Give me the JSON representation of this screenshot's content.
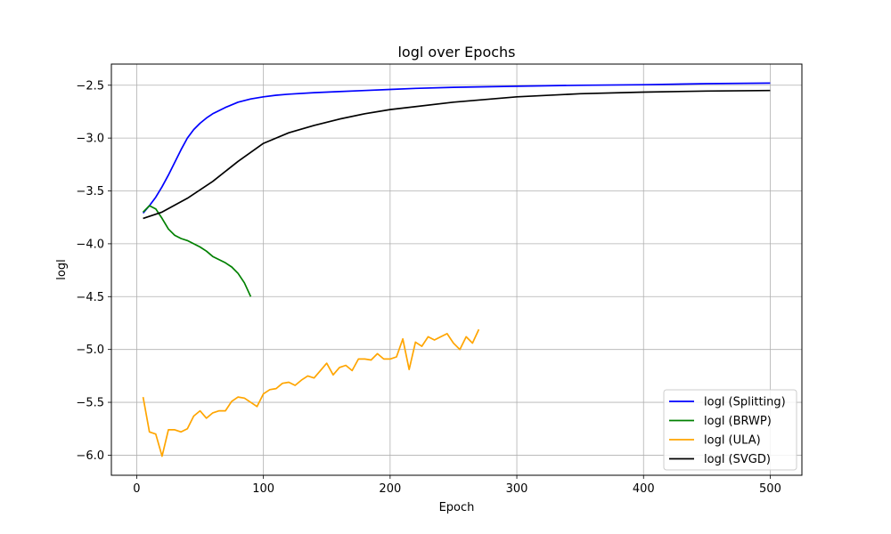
{
  "chart_data": {
    "type": "line",
    "title": "logl over Epochs",
    "xlabel": "Epoch",
    "ylabel": "logl",
    "xlim": [
      -20,
      525
    ],
    "ylim": [
      -6.19,
      -2.3
    ],
    "xticks": [
      0,
      100,
      200,
      300,
      400,
      500
    ],
    "xtick_labels": [
      "0",
      "100",
      "200",
      "300",
      "400",
      "500"
    ],
    "yticks": [
      -2.5,
      -3.0,
      -3.5,
      -4.0,
      -4.5,
      -5.0,
      -5.5,
      -6.0
    ],
    "ytick_labels": [
      "−2.5",
      "−3.0",
      "−3.5",
      "−4.0",
      "−4.5",
      "−5.0",
      "−5.5",
      "−6.0"
    ],
    "grid": true,
    "legend_position": "lower-right",
    "series": [
      {
        "name": "logl (Splitting)",
        "color": "#0000ff",
        "x": [
          5,
          10,
          15,
          20,
          25,
          30,
          35,
          40,
          45,
          50,
          55,
          60,
          70,
          80,
          90,
          100,
          110,
          120,
          140,
          160,
          180,
          200,
          220,
          250,
          300,
          350,
          400,
          450,
          500
        ],
        "y": [
          -3.71,
          -3.64,
          -3.56,
          -3.46,
          -3.35,
          -3.23,
          -3.11,
          -3.0,
          -2.92,
          -2.86,
          -2.81,
          -2.77,
          -2.71,
          -2.66,
          -2.63,
          -2.61,
          -2.595,
          -2.585,
          -2.57,
          -2.56,
          -2.55,
          -2.54,
          -2.53,
          -2.52,
          -2.51,
          -2.5,
          -2.495,
          -2.485,
          -2.48
        ]
      },
      {
        "name": "logl (BRWP)",
        "color": "#008000",
        "x": [
          5,
          10,
          15,
          20,
          25,
          30,
          35,
          40,
          45,
          50,
          55,
          60,
          65,
          70,
          75,
          80,
          85,
          90
        ],
        "y": [
          -3.7,
          -3.64,
          -3.67,
          -3.76,
          -3.86,
          -3.92,
          -3.95,
          -3.97,
          -4.0,
          -4.03,
          -4.07,
          -4.12,
          -4.15,
          -4.18,
          -4.22,
          -4.28,
          -4.37,
          -4.5
        ]
      },
      {
        "name": "logl (ULA)",
        "color": "#ffa500",
        "x": [
          5,
          10,
          15,
          20,
          25,
          30,
          35,
          40,
          45,
          50,
          55,
          60,
          65,
          70,
          75,
          80,
          85,
          90,
          95,
          100,
          105,
          110,
          115,
          120,
          125,
          130,
          135,
          140,
          145,
          150,
          155,
          160,
          165,
          170,
          175,
          180,
          185,
          190,
          195,
          200,
          205,
          210,
          215,
          220,
          225,
          230,
          235,
          240,
          245,
          250,
          255,
          260,
          265,
          270
        ],
        "y": [
          -5.45,
          -5.78,
          -5.8,
          -6.01,
          -5.76,
          -5.76,
          -5.78,
          -5.75,
          -5.63,
          -5.58,
          -5.65,
          -5.6,
          -5.58,
          -5.58,
          -5.49,
          -5.45,
          -5.46,
          -5.5,
          -5.54,
          -5.42,
          -5.38,
          -5.37,
          -5.32,
          -5.31,
          -5.34,
          -5.29,
          -5.25,
          -5.27,
          -5.2,
          -5.13,
          -5.24,
          -5.17,
          -5.15,
          -5.2,
          -5.09,
          -5.09,
          -5.1,
          -5.04,
          -5.09,
          -5.09,
          -5.07,
          -4.9,
          -5.19,
          -4.93,
          -4.97,
          -4.88,
          -4.91,
          -4.88,
          -4.85,
          -4.94,
          -5.0,
          -4.88,
          -4.94,
          -4.81
        ]
      },
      {
        "name": "logl (SVGD)",
        "color": "#000000",
        "x": [
          5,
          20,
          40,
          60,
          80,
          100,
          120,
          140,
          160,
          180,
          200,
          250,
          300,
          350,
          400,
          450,
          500
        ],
        "y": [
          -3.76,
          -3.7,
          -3.57,
          -3.41,
          -3.22,
          -3.05,
          -2.95,
          -2.88,
          -2.82,
          -2.77,
          -2.73,
          -2.66,
          -2.61,
          -2.58,
          -2.565,
          -2.555,
          -2.55
        ]
      }
    ]
  }
}
